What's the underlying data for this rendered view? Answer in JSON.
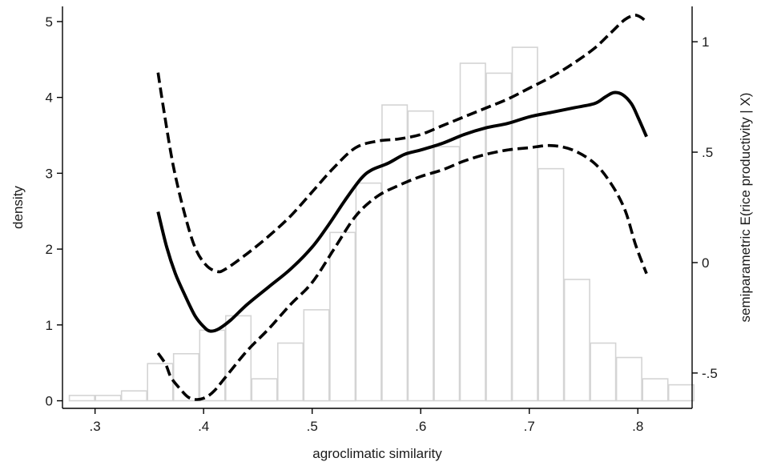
{
  "chart_data": {
    "type": "bar+line",
    "xlabel": "agroclimatic similarity",
    "ylabel_left": "density",
    "ylabel_right": "semiparametric E(rice productivity | X)",
    "xlim": [
      0.27,
      0.85
    ],
    "ylim_left": [
      -0.1,
      5.2
    ],
    "ylim_right": [
      -0.66,
      1.16
    ],
    "x_ticks": [
      {
        "value": 0.3,
        "label": ".3"
      },
      {
        "value": 0.4,
        "label": ".4"
      },
      {
        "value": 0.5,
        "label": ".5"
      },
      {
        "value": 0.6,
        "label": ".6"
      },
      {
        "value": 0.7,
        "label": ".7"
      },
      {
        "value": 0.8,
        "label": ".8"
      }
    ],
    "y_left_ticks": [
      {
        "value": 0,
        "label": "0"
      },
      {
        "value": 1,
        "label": "1"
      },
      {
        "value": 2,
        "label": "2"
      },
      {
        "value": 3,
        "label": "3"
      },
      {
        "value": 4,
        "label": "4"
      },
      {
        "value": 5,
        "label": "5"
      }
    ],
    "y_right_ticks": [
      {
        "value": -0.5,
        "label": "-.5"
      },
      {
        "value": 0,
        "label": "0"
      },
      {
        "value": 0.5,
        "label": ".5"
      },
      {
        "value": 1,
        "label": "1"
      }
    ],
    "grid": false,
    "colors": {
      "bars": "#d4d4d4",
      "lines": "#000000",
      "axes": "#000000"
    },
    "histogram": {
      "bin_width": 0.024,
      "bins": [
        {
          "x0": 0.276,
          "density": 0.07
        },
        {
          "x0": 0.3,
          "density": 0.07
        },
        {
          "x0": 0.324,
          "density": 0.13
        },
        {
          "x0": 0.348,
          "density": 0.49
        },
        {
          "x0": 0.372,
          "density": 0.62
        },
        {
          "x0": 0.396,
          "density": 0.93
        },
        {
          "x0": 0.42,
          "density": 1.12
        },
        {
          "x0": 0.444,
          "density": 0.29
        },
        {
          "x0": 0.468,
          "density": 0.76
        },
        {
          "x0": 0.492,
          "density": 1.2
        },
        {
          "x0": 0.516,
          "density": 2.22
        },
        {
          "x0": 0.54,
          "density": 2.87
        },
        {
          "x0": 0.564,
          "density": 3.9
        },
        {
          "x0": 0.588,
          "density": 3.82
        },
        {
          "x0": 0.612,
          "density": 3.35
        },
        {
          "x0": 0.636,
          "density": 4.45
        },
        {
          "x0": 0.66,
          "density": 4.32
        },
        {
          "x0": 0.684,
          "density": 4.66
        },
        {
          "x0": 0.708,
          "density": 3.06
        },
        {
          "x0": 0.732,
          "density": 1.6
        },
        {
          "x0": 0.756,
          "density": 0.76
        },
        {
          "x0": 0.78,
          "density": 0.57
        },
        {
          "x0": 0.804,
          "density": 0.29
        },
        {
          "x0": 0.828,
          "density": 0.21
        }
      ]
    },
    "series": [
      {
        "role": "estimate",
        "style": "solid",
        "x": [
          0.358,
          0.366,
          0.374,
          0.383,
          0.392,
          0.4,
          0.406,
          0.414,
          0.425,
          0.44,
          0.46,
          0.48,
          0.5,
          0.515,
          0.53,
          0.545,
          0.555,
          0.57,
          0.585,
          0.6,
          0.62,
          0.64,
          0.66,
          0.68,
          0.7,
          0.72,
          0.74,
          0.76,
          0.77,
          0.778,
          0.786,
          0.794,
          0.8,
          0.808
        ],
        "y": [
          0.23,
          0.07,
          -0.05,
          -0.15,
          -0.24,
          -0.29,
          -0.31,
          -0.3,
          -0.26,
          -0.19,
          -0.11,
          -0.03,
          0.07,
          0.17,
          0.28,
          0.38,
          0.42,
          0.45,
          0.49,
          0.51,
          0.54,
          0.58,
          0.61,
          0.63,
          0.66,
          0.68,
          0.7,
          0.72,
          0.75,
          0.77,
          0.76,
          0.72,
          0.66,
          0.57
        ]
      },
      {
        "role": "upper confidence band",
        "style": "dashed",
        "x": [
          0.358,
          0.364,
          0.372,
          0.382,
          0.392,
          0.402,
          0.412,
          0.42,
          0.44,
          0.46,
          0.48,
          0.5,
          0.52,
          0.54,
          0.56,
          0.58,
          0.6,
          0.62,
          0.64,
          0.66,
          0.68,
          0.7,
          0.72,
          0.74,
          0.76,
          0.775,
          0.788,
          0.797,
          0.803,
          0.808
        ],
        "y": [
          0.86,
          0.67,
          0.44,
          0.23,
          0.07,
          -0.01,
          -0.04,
          -0.03,
          0.04,
          0.12,
          0.21,
          0.32,
          0.43,
          0.52,
          0.55,
          0.56,
          0.58,
          0.62,
          0.66,
          0.7,
          0.74,
          0.79,
          0.84,
          0.9,
          0.97,
          1.04,
          1.1,
          1.12,
          1.11,
          1.09
        ]
      },
      {
        "role": "lower confidence band",
        "style": "dashed",
        "x": [
          0.358,
          0.365,
          0.37,
          0.378,
          0.386,
          0.394,
          0.402,
          0.41,
          0.42,
          0.44,
          0.46,
          0.48,
          0.5,
          0.52,
          0.54,
          0.56,
          0.58,
          0.6,
          0.62,
          0.64,
          0.66,
          0.68,
          0.7,
          0.72,
          0.74,
          0.76,
          0.775,
          0.788,
          0.798,
          0.808
        ],
        "y": [
          -0.41,
          -0.46,
          -0.52,
          -0.57,
          -0.61,
          -0.62,
          -0.61,
          -0.58,
          -0.52,
          -0.4,
          -0.3,
          -0.19,
          -0.09,
          0.06,
          0.21,
          0.3,
          0.35,
          0.39,
          0.42,
          0.46,
          0.49,
          0.51,
          0.52,
          0.53,
          0.51,
          0.45,
          0.36,
          0.24,
          0.08,
          -0.05
        ]
      }
    ]
  }
}
